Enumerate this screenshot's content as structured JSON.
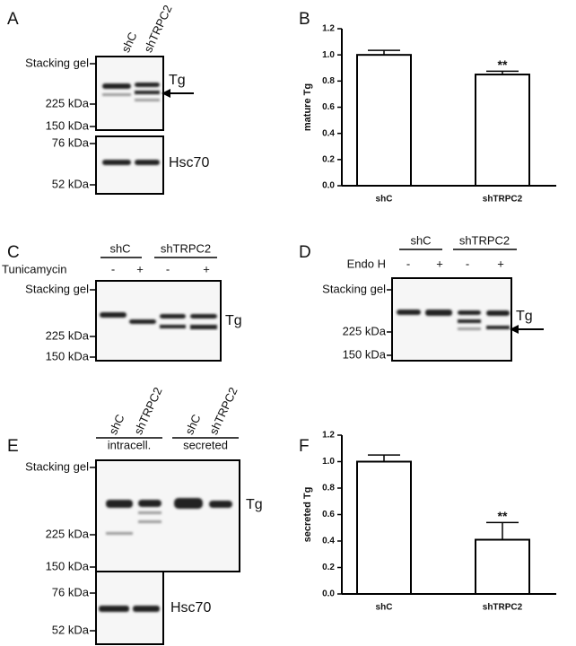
{
  "blots": {
    "A": {
      "panel": "A",
      "lanes": [
        "shC",
        "shTRPC2"
      ],
      "markers": [
        "Stacking gel",
        "225 kDa",
        "150 kDa",
        "76 kDa",
        "52 kDa"
      ],
      "bands": [
        "Tg",
        "Hsc70"
      ]
    },
    "C": {
      "panel": "C",
      "groups": [
        "shC",
        "shTRPC2"
      ],
      "treatment": "Tunicamycin",
      "signs": [
        "-",
        "+",
        "-",
        "+"
      ],
      "markers": [
        "Stacking gel",
        "225 kDa",
        "150 kDa"
      ],
      "band": "Tg"
    },
    "D": {
      "panel": "D",
      "groups": [
        "shC",
        "shTRPC2"
      ],
      "treatment": "Endo H",
      "signs": [
        "-",
        "+",
        "-",
        "+"
      ],
      "markers": [
        "Stacking gel",
        "225 kDa",
        "150 kDa"
      ],
      "band": "Tg"
    },
    "E": {
      "panel": "E",
      "lanes": [
        "shC",
        "shTRPC2",
        "shC",
        "shTRPC2"
      ],
      "groups": [
        "intracell.",
        "secreted"
      ],
      "markers": [
        "Stacking gel",
        "225 kDa",
        "150 kDa",
        "76 kDa",
        "52 kDa"
      ],
      "bands": [
        "Tg",
        "Hsc70"
      ]
    }
  },
  "chart_data": [
    {
      "type": "bar",
      "panel": "B",
      "ylabel": "mature Tg",
      "categories": [
        "shC",
        "shTRPC2"
      ],
      "values": [
        1.0,
        0.85
      ],
      "errors": [
        0.035,
        0.025
      ],
      "annotation": "**",
      "color": "#ffffff",
      "ylim": [
        0,
        1.2
      ],
      "yticks": [
        {
          "value": 0,
          "label": "0.0"
        },
        {
          "value": 0.2,
          "label": "0.2"
        },
        {
          "value": 0.4,
          "label": "0.4"
        },
        {
          "value": 0.6,
          "label": "0.6"
        },
        {
          "value": 0.8,
          "label": "0.8"
        },
        {
          "value": 1,
          "label": "1.0"
        },
        {
          "value": 1.2,
          "label": "1.2"
        }
      ]
    },
    {
      "type": "bar",
      "panel": "F",
      "ylabel": "secreted Tg",
      "categories": [
        "shC",
        "shTRPC2"
      ],
      "values": [
        1.0,
        0.41
      ],
      "errors": [
        0.05,
        0.13
      ],
      "annotation": "**",
      "color": "#ffffff",
      "ylim": [
        0,
        1.2
      ],
      "yticks": [
        {
          "value": 0,
          "label": "0.0"
        },
        {
          "value": 0.2,
          "label": "0.2"
        },
        {
          "value": 0.4,
          "label": "0.4"
        },
        {
          "value": 0.6,
          "label": "0.6"
        },
        {
          "value": 0.8,
          "label": "0.8"
        },
        {
          "value": 1,
          "label": "1.0"
        },
        {
          "value": 1.2,
          "label": "1.2"
        }
      ]
    }
  ]
}
